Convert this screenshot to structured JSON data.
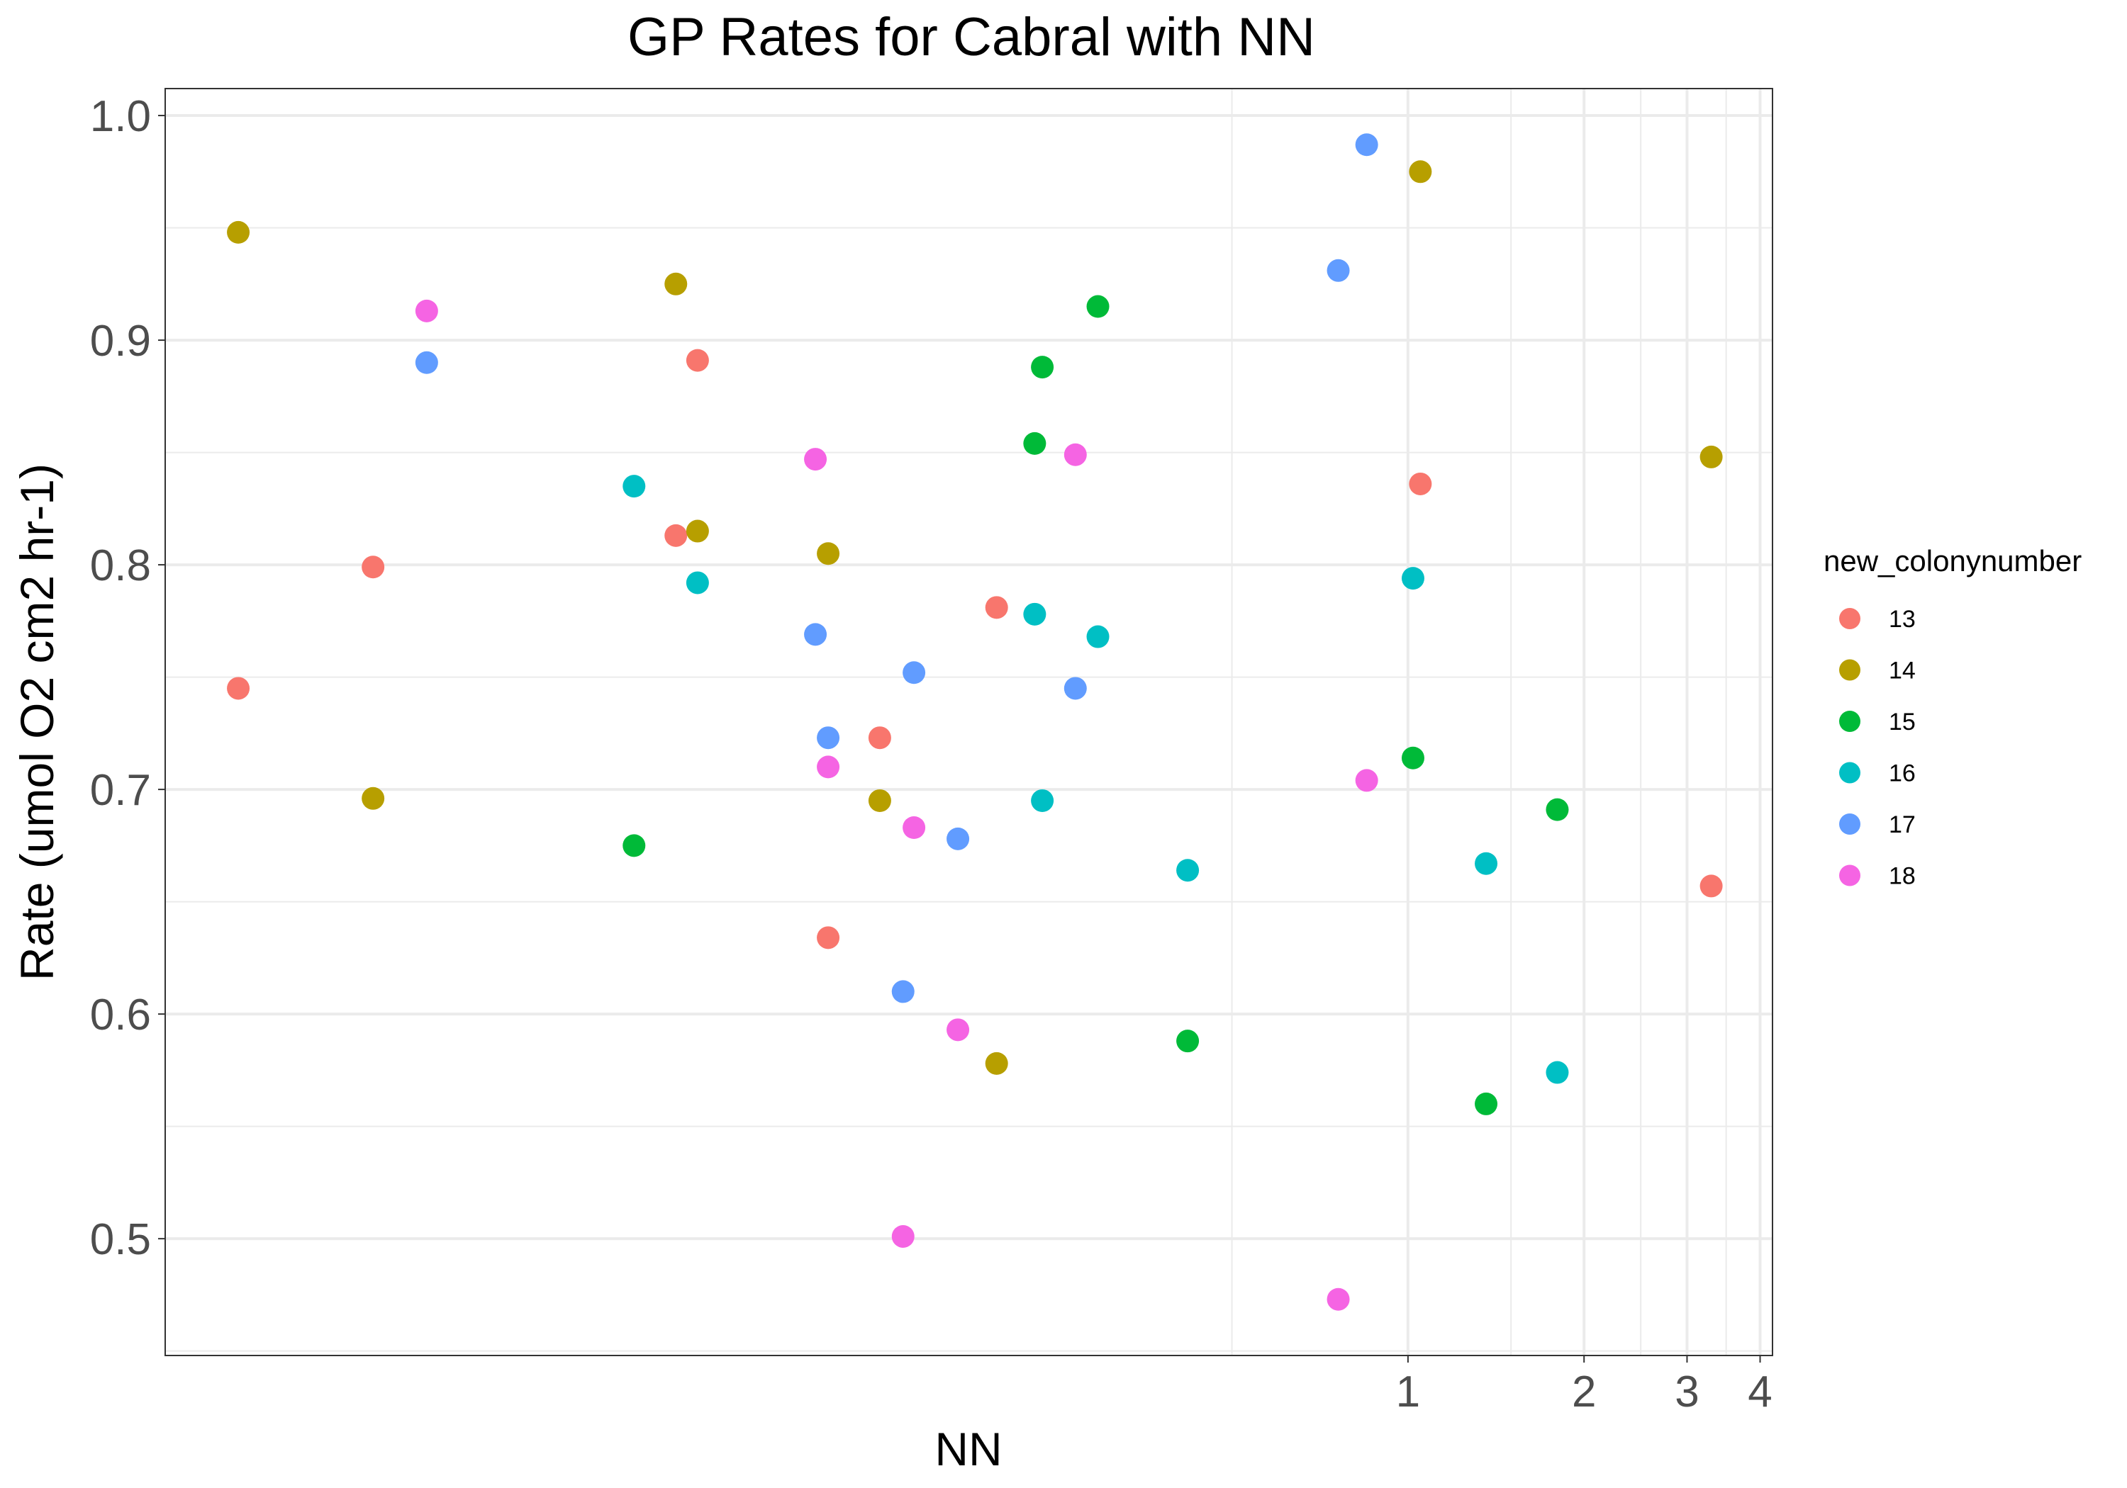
{
  "chart_data": {
    "type": "scatter",
    "title": "GP Rates for Cabral with NN",
    "xlabel": "NN",
    "ylabel": "Rate (umol O2 cm2 hr-1)",
    "x_scale": "log10",
    "xlim": [
      0.0075,
      4.2
    ],
    "ylim": [
      0.448,
      1.012
    ],
    "x_ticks": [
      {
        "value": 1,
        "label": "1"
      },
      {
        "value": 2,
        "label": "2"
      },
      {
        "value": 3,
        "label": "3"
      },
      {
        "value": 4,
        "label": "4"
      }
    ],
    "y_ticks": [
      {
        "value": 0.5,
        "label": "0.5"
      },
      {
        "value": 0.6,
        "label": "0.6"
      },
      {
        "value": 0.7,
        "label": "0.7"
      },
      {
        "value": 0.8,
        "label": "0.8"
      },
      {
        "value": 0.9,
        "label": "0.9"
      },
      {
        "value": 1.0,
        "label": "1.0"
      }
    ],
    "grid": true,
    "legend": {
      "title": "new_colonynumber",
      "position": "right"
    },
    "series": [
      {
        "name": "13",
        "color": "#F8766D",
        "points": [
          [
            0.01,
            0.745
          ],
          [
            0.017,
            0.799
          ],
          [
            0.056,
            0.813
          ],
          [
            0.061,
            0.891
          ],
          [
            0.102,
            0.634
          ],
          [
            0.125,
            0.723
          ],
          [
            0.198,
            0.781
          ],
          [
            1.05,
            0.836
          ],
          [
            3.3,
            0.657
          ]
        ]
      },
      {
        "name": "14",
        "color": "#B79F00",
        "points": [
          [
            0.01,
            0.948
          ],
          [
            0.017,
            0.696
          ],
          [
            0.056,
            0.925
          ],
          [
            0.061,
            0.815
          ],
          [
            0.102,
            0.805
          ],
          [
            0.125,
            0.695
          ],
          [
            0.198,
            0.578
          ],
          [
            1.05,
            0.975
          ],
          [
            3.3,
            0.848
          ]
        ]
      },
      {
        "name": "15",
        "color": "#00BA38",
        "points": [
          [
            0.0475,
            0.675
          ],
          [
            0.23,
            0.854
          ],
          [
            0.237,
            0.888
          ],
          [
            0.295,
            0.915
          ],
          [
            0.42,
            0.588
          ],
          [
            1.02,
            0.714
          ],
          [
            1.36,
            0.56
          ],
          [
            1.8,
            0.691
          ]
        ]
      },
      {
        "name": "16",
        "color": "#00BFC4",
        "points": [
          [
            0.0475,
            0.835
          ],
          [
            0.061,
            0.792
          ],
          [
            0.23,
            0.778
          ],
          [
            0.237,
            0.695
          ],
          [
            0.295,
            0.768
          ],
          [
            0.42,
            0.664
          ],
          [
            1.02,
            0.794
          ],
          [
            1.36,
            0.667
          ],
          [
            1.8,
            0.574
          ]
        ]
      },
      {
        "name": "17",
        "color": "#619CFF",
        "points": [
          [
            0.021,
            0.89
          ],
          [
            0.097,
            0.769
          ],
          [
            0.102,
            0.723
          ],
          [
            0.137,
            0.61
          ],
          [
            0.143,
            0.752
          ],
          [
            0.17,
            0.678
          ],
          [
            0.27,
            0.745
          ],
          [
            0.76,
            0.931
          ],
          [
            0.85,
            0.987
          ]
        ]
      },
      {
        "name": "18",
        "color": "#F564E3",
        "points": [
          [
            0.021,
            0.913
          ],
          [
            0.097,
            0.847
          ],
          [
            0.102,
            0.71
          ],
          [
            0.137,
            0.501
          ],
          [
            0.143,
            0.683
          ],
          [
            0.17,
            0.593
          ],
          [
            0.27,
            0.849
          ],
          [
            0.76,
            0.473
          ],
          [
            0.85,
            0.704
          ]
        ]
      }
    ]
  }
}
